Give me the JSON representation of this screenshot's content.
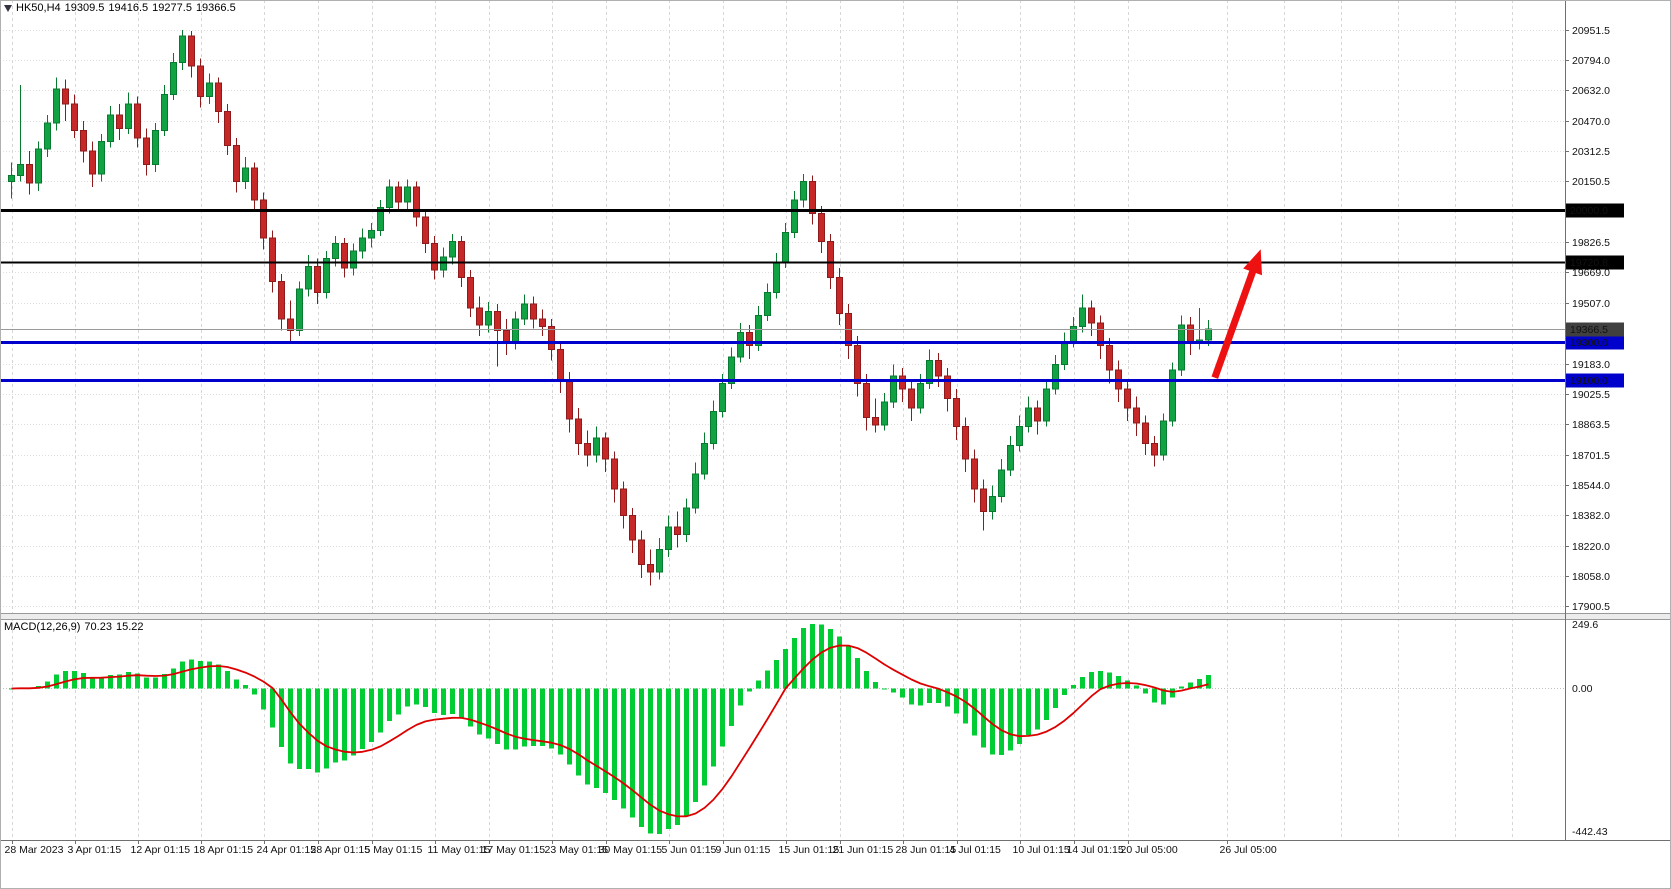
{
  "window": {
    "symbol_period": "HK50,H4",
    "ohlc": {
      "open": "19309.5",
      "high": "19416.5",
      "low": "19277.5",
      "close": "19366.5"
    }
  },
  "chart_data": [
    {
      "type": "candlestick",
      "symbol": "HK50",
      "timeframe": "H4",
      "title": "HK50,H4 19309.5 19416.5 19277.5 19366.5",
      "ylim": [
        17900.5,
        21068
      ],
      "y_ticks": [
        20951.5,
        20794.0,
        20632.0,
        20470.0,
        20312.5,
        20150.5,
        19826.5,
        19669.0,
        19507.0,
        19183.0,
        19025.5,
        18863.5,
        18701.5,
        18544.0,
        18382.0,
        18220.0,
        18058.0,
        17900.5
      ],
      "x_labels": [
        {
          "label": "28 Mar 2023",
          "i": 0
        },
        {
          "label": "3 Apr 01:15",
          "i": 7
        },
        {
          "label": "12 Apr 01:15",
          "i": 14
        },
        {
          "label": "18 Apr 01:15",
          "i": 21
        },
        {
          "label": "24 Apr 01:15",
          "i": 28
        },
        {
          "label": "28 Apr 01:15",
          "i": 34
        },
        {
          "label": "5 May 01:15",
          "i": 40
        },
        {
          "label": "11 May 01:15",
          "i": 47
        },
        {
          "label": "17 May 01:15",
          "i": 53
        },
        {
          "label": "23 May 01:15",
          "i": 60
        },
        {
          "label": "30 May 01:15",
          "i": 66
        },
        {
          "label": "5 Jun 01:15",
          "i": 73
        },
        {
          "label": "9 Jun 01:15",
          "i": 79
        },
        {
          "label": "15 Jun 01:15",
          "i": 86
        },
        {
          "label": "21 Jun 01:15",
          "i": 92
        },
        {
          "label": "28 Jun 01:15",
          "i": 99
        },
        {
          "label": "4 Jul 01:15",
          "i": 105
        },
        {
          "label": "10 Jul 01:15",
          "i": 112
        },
        {
          "label": "14 Jul 01:15",
          "i": 118
        },
        {
          "label": "20 Jul 05:00",
          "i": 124
        },
        {
          "label": "26 Jul 05:00",
          "i": 135
        }
      ],
      "h_lines": [
        {
          "price": 20000.0,
          "label": "20000.0",
          "color": "#000000",
          "width": 3
        },
        {
          "price": 19720.8,
          "label": "19720.8",
          "color": "#000000",
          "width": 2
        },
        {
          "price": 19300.0,
          "label": "19300.0",
          "color": "#0000cd",
          "width": 3
        },
        {
          "price": 19100.0,
          "label": "19100.0",
          "color": "#0000cd",
          "width": 3
        }
      ],
      "current_price": {
        "value": 19366.5,
        "label": "19366.5",
        "box_color": "#404040"
      },
      "arrow": {
        "from": {
          "i": 133.7,
          "price": 19110
        },
        "to": {
          "i": 138.8,
          "price": 19790
        },
        "color": "#ee1111"
      },
      "colors": {
        "up_fill": "#11a244",
        "up_stroke": "#077a2f",
        "down_fill": "#c62828",
        "down_stroke": "#8e1b1b"
      },
      "candles": [
        [
          20150,
          20250,
          20060,
          20180
        ],
        [
          20180,
          20660,
          20150,
          20240
        ],
        [
          20240,
          20310,
          20080,
          20140
        ],
        [
          20140,
          20360,
          20100,
          20320
        ],
        [
          20320,
          20500,
          20280,
          20460
        ],
        [
          20460,
          20700,
          20420,
          20640
        ],
        [
          20640,
          20690,
          20470,
          20560
        ],
        [
          20560,
          20610,
          20380,
          20420
        ],
        [
          20420,
          20470,
          20250,
          20310
        ],
        [
          20310,
          20360,
          20120,
          20190
        ],
        [
          20190,
          20400,
          20150,
          20360
        ],
        [
          20360,
          20550,
          20330,
          20500
        ],
        [
          20500,
          20560,
          20370,
          20430
        ],
        [
          20430,
          20620,
          20400,
          20560
        ],
        [
          20560,
          20600,
          20330,
          20380
        ],
        [
          20380,
          20430,
          20180,
          20240
        ],
        [
          20240,
          20460,
          20200,
          20420
        ],
        [
          20420,
          20660,
          20390,
          20610
        ],
        [
          20610,
          20830,
          20580,
          20780
        ],
        [
          20780,
          20951.5,
          20740,
          20920
        ],
        [
          20920,
          20945,
          20700,
          20760
        ],
        [
          20760,
          20800,
          20540,
          20600
        ],
        [
          20600,
          20720,
          20560,
          20670
        ],
        [
          20670,
          20700,
          20460,
          20520
        ],
        [
          20520,
          20560,
          20290,
          20340
        ],
        [
          20340,
          20380,
          20090,
          20150
        ],
        [
          20150,
          20280,
          20110,
          20220
        ],
        [
          20220,
          20250,
          19990,
          20050
        ],
        [
          20050,
          20090,
          19790,
          19850
        ],
        [
          19850,
          19890,
          19560,
          19620
        ],
        [
          19620,
          19660,
          19360,
          19420
        ],
        [
          19420,
          19520,
          19300,
          19360
        ],
        [
          19360,
          19620,
          19330,
          19580
        ],
        [
          19580,
          19760,
          19540,
          19700
        ],
        [
          19700,
          19740,
          19500,
          19560
        ],
        [
          19560,
          19780,
          19530,
          19740
        ],
        [
          19740,
          19860,
          19700,
          19820
        ],
        [
          19820,
          19850,
          19640,
          19690
        ],
        [
          19690,
          19820,
          19650,
          19780
        ],
        [
          19780,
          19900,
          19740,
          19850
        ],
        [
          19850,
          19930,
          19800,
          19890
        ],
        [
          19890,
          20050,
          19860,
          20010
        ],
        [
          20010,
          20160,
          19980,
          20120
        ],
        [
          20120,
          20150,
          19990,
          20040
        ],
        [
          20040,
          20160,
          20000,
          20120
        ],
        [
          20120,
          20150,
          19910,
          19960
        ],
        [
          19960,
          20000,
          19770,
          19820
        ],
        [
          19820,
          19860,
          19630,
          19680
        ],
        [
          19680,
          19800,
          19640,
          19750
        ],
        [
          19750,
          19870,
          19710,
          19830
        ],
        [
          19830,
          19860,
          19590,
          19640
        ],
        [
          19640,
          19680,
          19430,
          19480
        ],
        [
          19480,
          19540,
          19330,
          19390
        ],
        [
          19390,
          19510,
          19350,
          19460
        ],
        [
          19460,
          19500,
          19170,
          19360
        ],
        [
          19360,
          19420,
          19230,
          19290
        ],
        [
          19290,
          19460,
          19260,
          19420
        ],
        [
          19420,
          19550,
          19390,
          19500
        ],
        [
          19500,
          19540,
          19370,
          19420
        ],
        [
          19420,
          19470,
          19330,
          19380
        ],
        [
          19380,
          19420,
          19200,
          19260
        ],
        [
          19260,
          19300,
          19030,
          19100
        ],
        [
          19100,
          19140,
          18820,
          18890
        ],
        [
          18890,
          18950,
          18700,
          18760
        ],
        [
          18760,
          18830,
          18640,
          18700
        ],
        [
          18700,
          18850,
          18660,
          18790
        ],
        [
          18790,
          18820,
          18610,
          18680
        ],
        [
          18680,
          18720,
          18450,
          18520
        ],
        [
          18520,
          18560,
          18310,
          18380
        ],
        [
          18380,
          18420,
          18180,
          18250
        ],
        [
          18250,
          18300,
          18050,
          18120
        ],
        [
          18120,
          18200,
          18010,
          18080
        ],
        [
          18080,
          18260,
          18040,
          18200
        ],
        [
          18200,
          18380,
          18160,
          18320
        ],
        [
          18320,
          18400,
          18210,
          18280
        ],
        [
          18280,
          18470,
          18240,
          18420
        ],
        [
          18420,
          18660,
          18390,
          18600
        ],
        [
          18600,
          18820,
          18570,
          18760
        ],
        [
          18760,
          18990,
          18730,
          18930
        ],
        [
          18930,
          19130,
          18900,
          19080
        ],
        [
          19080,
          19270,
          19050,
          19220
        ],
        [
          19220,
          19400,
          19190,
          19350
        ],
        [
          19350,
          19390,
          19210,
          19280
        ],
        [
          19280,
          19490,
          19250,
          19440
        ],
        [
          19440,
          19610,
          19410,
          19560
        ],
        [
          19560,
          19770,
          19530,
          19720
        ],
        [
          19720,
          19930,
          19690,
          19880
        ],
        [
          19880,
          20100,
          19850,
          20050
        ],
        [
          20050,
          20190,
          20010,
          20150
        ],
        [
          20150,
          20180,
          19920,
          19980
        ],
        [
          19980,
          20020,
          19770,
          19830
        ],
        [
          19830,
          19870,
          19580,
          19640
        ],
        [
          19640,
          19690,
          19390,
          19450
        ],
        [
          19450,
          19500,
          19210,
          19280
        ],
        [
          19280,
          19330,
          19010,
          19080
        ],
        [
          19080,
          19130,
          18830,
          18900
        ],
        [
          18900,
          19000,
          18820,
          18860
        ],
        [
          18860,
          19030,
          18830,
          18980
        ],
        [
          18980,
          19180,
          18950,
          19120
        ],
        [
          19120,
          19160,
          18980,
          19050
        ],
        [
          19050,
          19100,
          18880,
          18950
        ],
        [
          18950,
          19130,
          18920,
          19080
        ],
        [
          19080,
          19260,
          19050,
          19200
        ],
        [
          19200,
          19240,
          19060,
          19120
        ],
        [
          19120,
          19160,
          18930,
          19000
        ],
        [
          19000,
          19050,
          18780,
          18850
        ],
        [
          18850,
          18900,
          18610,
          18680
        ],
        [
          18680,
          18730,
          18450,
          18520
        ],
        [
          18520,
          18570,
          18300,
          18400
        ],
        [
          18400,
          18540,
          18360,
          18480
        ],
        [
          18480,
          18680,
          18450,
          18620
        ],
        [
          18620,
          18800,
          18590,
          18750
        ],
        [
          18750,
          18910,
          18720,
          18850
        ],
        [
          18850,
          19010,
          18820,
          18950
        ],
        [
          18950,
          18990,
          18810,
          18880
        ],
        [
          18880,
          19100,
          18850,
          19050
        ],
        [
          19050,
          19230,
          19020,
          19180
        ],
        [
          19180,
          19350,
          19150,
          19300
        ],
        [
          19300,
          19430,
          19270,
          19380
        ],
        [
          19380,
          19550,
          19350,
          19480
        ],
        [
          19480,
          19520,
          19330,
          19400
        ],
        [
          19400,
          19440,
          19210,
          19280
        ],
        [
          19280,
          19320,
          19080,
          19150
        ],
        [
          19150,
          19200,
          18980,
          19050
        ],
        [
          19050,
          19100,
          18880,
          18950
        ],
        [
          18950,
          19010,
          18800,
          18870
        ],
        [
          18870,
          18910,
          18700,
          18760
        ],
        [
          18760,
          18800,
          18640,
          18700
        ],
        [
          18700,
          18920,
          18670,
          18880
        ],
        [
          18880,
          19190,
          18850,
          19150
        ],
        [
          19150,
          19440,
          19120,
          19390
        ],
        [
          19390,
          19430,
          19230,
          19290
        ],
        [
          19290,
          19480,
          19260,
          19309.5
        ],
        [
          19309.5,
          19416.5,
          19277.5,
          19366.5
        ]
      ]
    },
    {
      "type": "bar",
      "name_label": "MACD(12,26,9)",
      "value_main": "70.23",
      "value_signal": "15.22",
      "params": {
        "fast": 12,
        "slow": 26,
        "signal": 9
      },
      "y_ticks": [
        "249.6",
        "0.00",
        "-442.43"
      ],
      "ylim": [
        -442.43,
        249.6
      ],
      "histogram_color": "#00cc33",
      "signal_color": "#dd0000"
    }
  ]
}
